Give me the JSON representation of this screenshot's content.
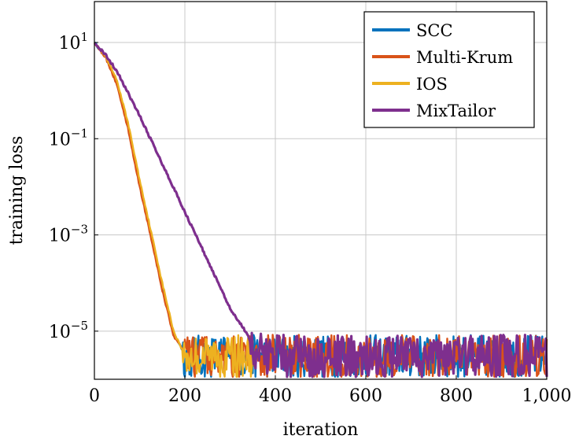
{
  "chart_data": {
    "type": "line",
    "title": "",
    "xlabel": "iteration",
    "ylabel": "training loss",
    "xlim": [
      0,
      1000
    ],
    "ylim_log10": [
      -6,
      1.85
    ],
    "yscale": "log",
    "grid": true,
    "legend_position": "top-right",
    "x_ticks": [
      0,
      200,
      400,
      600,
      800,
      1000
    ],
    "x_tick_labels": [
      "0",
      "200",
      "400",
      "600",
      "800",
      "1,000"
    ],
    "y_ticks_log10": [
      1,
      -1,
      -3,
      -5
    ],
    "y_tick_labels": [
      {
        "base": "10",
        "exp": "1"
      },
      {
        "base": "10",
        "exp": "−1"
      },
      {
        "base": "10",
        "exp": "−3"
      },
      {
        "base": "10",
        "exp": "−5"
      }
    ],
    "series": [
      {
        "name": "SCC",
        "color": "#0072BD",
        "x": [
          0,
          25,
          50,
          75,
          100,
          125,
          150,
          175,
          190,
          200,
          250,
          300,
          400,
          500,
          600,
          700,
          800,
          900,
          1000
        ],
        "y": [
          10,
          5,
          1.5,
          0.18,
          0.012,
          0.001,
          8e-05,
          9e-06,
          5e-06,
          3e-06,
          3e-06,
          3e-06,
          3e-06,
          3e-06,
          3e-06,
          3e-06,
          3e-06,
          3e-06,
          3e-06
        ],
        "noise_from_x": 195
      },
      {
        "name": "Multi-Krum",
        "color": "#D95319",
        "x": [
          0,
          25,
          50,
          75,
          100,
          125,
          150,
          175,
          190,
          200,
          250,
          300,
          400,
          500,
          600,
          700,
          800,
          900,
          1000
        ],
        "y": [
          10,
          4.8,
          1.3,
          0.15,
          0.01,
          0.0009,
          7e-05,
          8e-06,
          5e-06,
          3e-06,
          3e-06,
          3e-06,
          3e-06,
          3e-06,
          3e-06,
          3e-06,
          3e-06,
          3e-06,
          3e-06
        ],
        "noise_from_x": 195
      },
      {
        "name": "IOS",
        "color": "#EDB120",
        "x": [
          0,
          25,
          50,
          75,
          100,
          125,
          150,
          175,
          190,
          200,
          250,
          300,
          350
        ],
        "y": [
          10,
          5,
          1.6,
          0.2,
          0.014,
          0.0012,
          0.0001,
          1e-05,
          5e-06,
          3e-06,
          3e-06,
          3e-06,
          3e-06
        ],
        "noise_from_x": 195
      },
      {
        "name": "MixTailor",
        "color": "#7E2F8E",
        "x": [
          0,
          25,
          50,
          100,
          150,
          200,
          250,
          300,
          340,
          350,
          400,
          500,
          600,
          700,
          800,
          900,
          1000
        ],
        "y": [
          10,
          5.5,
          2.5,
          0.3,
          0.03,
          0.003,
          0.0003,
          3e-05,
          8e-06,
          4e-06,
          3e-06,
          3e-06,
          3e-06,
          3e-06,
          3e-06,
          3e-06,
          3e-06
        ],
        "noise_from_x": 345
      }
    ]
  }
}
